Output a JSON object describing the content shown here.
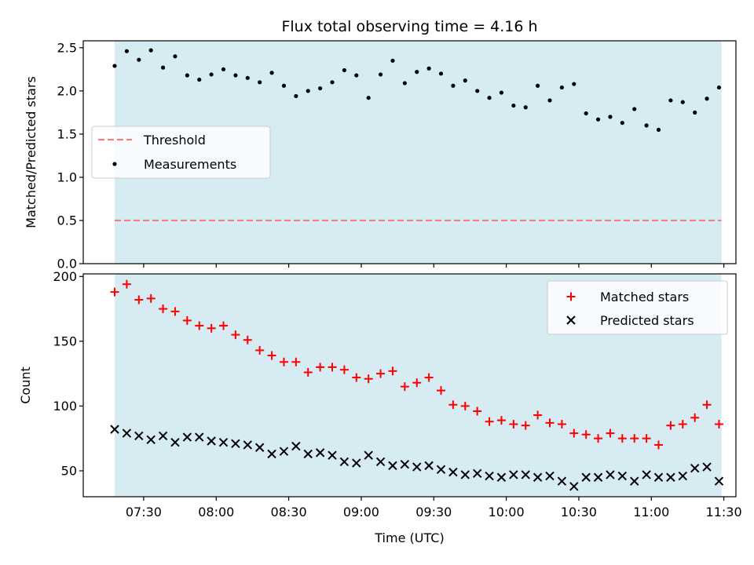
{
  "chart_data": [
    {
      "type": "scatter",
      "title": "Flux total observing time = 4.16 h",
      "xlabel": "",
      "ylabel": "Matched/Predicted stars",
      "ylim": [
        0,
        2.58
      ],
      "yticks": [
        "0.0",
        "0.5",
        "1.0",
        "1.5",
        "2.0",
        "2.5"
      ],
      "grid": false,
      "legend": "center-left",
      "observing_window": [
        "07:18",
        "11:29"
      ],
      "threshold": {
        "name": "Threshold",
        "value": 0.5,
        "color": "#f08080"
      },
      "series": [
        {
          "name": "Measurements",
          "color": "#000000",
          "x": [
            "07:18",
            "07:23",
            "07:28",
            "07:33",
            "07:38",
            "07:43",
            "07:48",
            "07:53",
            "07:58",
            "08:03",
            "08:08",
            "08:13",
            "08:18",
            "08:23",
            "08:28",
            "08:33",
            "08:38",
            "08:43",
            "08:48",
            "08:53",
            "08:58",
            "09:03",
            "09:08",
            "09:13",
            "09:18",
            "09:23",
            "09:28",
            "09:33",
            "09:38",
            "09:43",
            "09:48",
            "09:53",
            "09:58",
            "10:03",
            "10:08",
            "10:13",
            "10:18",
            "10:23",
            "10:28",
            "10:33",
            "10:38",
            "10:43",
            "10:48",
            "10:53",
            "10:58",
            "11:03",
            "11:08",
            "11:13",
            "11:18",
            "11:23",
            "11:28"
          ],
          "values": [
            2.29,
            2.46,
            2.36,
            2.47,
            2.27,
            2.4,
            2.18,
            2.13,
            2.19,
            2.25,
            2.18,
            2.15,
            2.1,
            2.21,
            2.06,
            1.94,
            2.0,
            2.03,
            2.1,
            2.24,
            2.18,
            1.92,
            2.19,
            2.35,
            2.09,
            2.22,
            2.26,
            2.2,
            2.06,
            2.12,
            2.0,
            1.92,
            1.98,
            1.83,
            1.81,
            2.06,
            1.89,
            2.04,
            2.08,
            1.74,
            1.67,
            1.7,
            1.63,
            1.79,
            1.6,
            1.55,
            1.89,
            1.87,
            1.75,
            1.91,
            2.04
          ]
        }
      ]
    },
    {
      "type": "scatter",
      "title": "",
      "xlabel": "Time (UTC)",
      "ylabel": "Count",
      "ylim": [
        30,
        202
      ],
      "yticks": [
        "50",
        "100",
        "150",
        "200"
      ],
      "xlim": [
        "07:05",
        "11:35"
      ],
      "xticks": [
        "07:30",
        "08:00",
        "08:30",
        "09:00",
        "09:30",
        "10:00",
        "10:30",
        "11:00",
        "11:30"
      ],
      "grid": false,
      "legend": "top-right",
      "observing_window": [
        "07:18",
        "11:29"
      ],
      "series": [
        {
          "name": "Matched stars",
          "marker": "plus",
          "color": "#ff0000",
          "x": [
            "07:18",
            "07:23",
            "07:28",
            "07:33",
            "07:38",
            "07:43",
            "07:48",
            "07:53",
            "07:58",
            "08:03",
            "08:08",
            "08:13",
            "08:18",
            "08:23",
            "08:28",
            "08:33",
            "08:38",
            "08:43",
            "08:48",
            "08:53",
            "08:58",
            "09:03",
            "09:08",
            "09:13",
            "09:18",
            "09:23",
            "09:28",
            "09:33",
            "09:38",
            "09:43",
            "09:48",
            "09:53",
            "09:58",
            "10:03",
            "10:08",
            "10:13",
            "10:18",
            "10:23",
            "10:28",
            "10:33",
            "10:38",
            "10:43",
            "10:48",
            "10:53",
            "10:58",
            "11:03",
            "11:08",
            "11:13",
            "11:18",
            "11:23",
            "11:28"
          ],
          "values": [
            188,
            194,
            182,
            183,
            175,
            173,
            166,
            162,
            160,
            162,
            155,
            151,
            143,
            139,
            134,
            134,
            126,
            130,
            130,
            128,
            122,
            121,
            125,
            127,
            115,
            118,
            122,
            112,
            101,
            100,
            96,
            88,
            89,
            86,
            85,
            93,
            87,
            86,
            79,
            78,
            75,
            79,
            75,
            75,
            75,
            70,
            85,
            86,
            91,
            101,
            86
          ]
        },
        {
          "name": "Predicted stars",
          "marker": "x",
          "color": "#000000",
          "x": [
            "07:18",
            "07:23",
            "07:28",
            "07:33",
            "07:38",
            "07:43",
            "07:48",
            "07:53",
            "07:58",
            "08:03",
            "08:08",
            "08:13",
            "08:18",
            "08:23",
            "08:28",
            "08:33",
            "08:38",
            "08:43",
            "08:48",
            "08:53",
            "08:58",
            "09:03",
            "09:08",
            "09:13",
            "09:18",
            "09:23",
            "09:28",
            "09:33",
            "09:38",
            "09:43",
            "09:48",
            "09:53",
            "09:58",
            "10:03",
            "10:08",
            "10:13",
            "10:18",
            "10:23",
            "10:28",
            "10:33",
            "10:38",
            "10:43",
            "10:48",
            "10:53",
            "10:58",
            "11:03",
            "11:08",
            "11:13",
            "11:18",
            "11:23",
            "11:28"
          ],
          "values": [
            82,
            79,
            77,
            74,
            77,
            72,
            76,
            76,
            73,
            72,
            71,
            70,
            68,
            63,
            65,
            69,
            63,
            64,
            62,
            57,
            56,
            62,
            57,
            54,
            55,
            53,
            54,
            51,
            49,
            47,
            48,
            46,
            45,
            47,
            47,
            45,
            46,
            42,
            38,
            45,
            45,
            47,
            46,
            42,
            47,
            45,
            45,
            46,
            52,
            53,
            42
          ]
        }
      ]
    }
  ]
}
